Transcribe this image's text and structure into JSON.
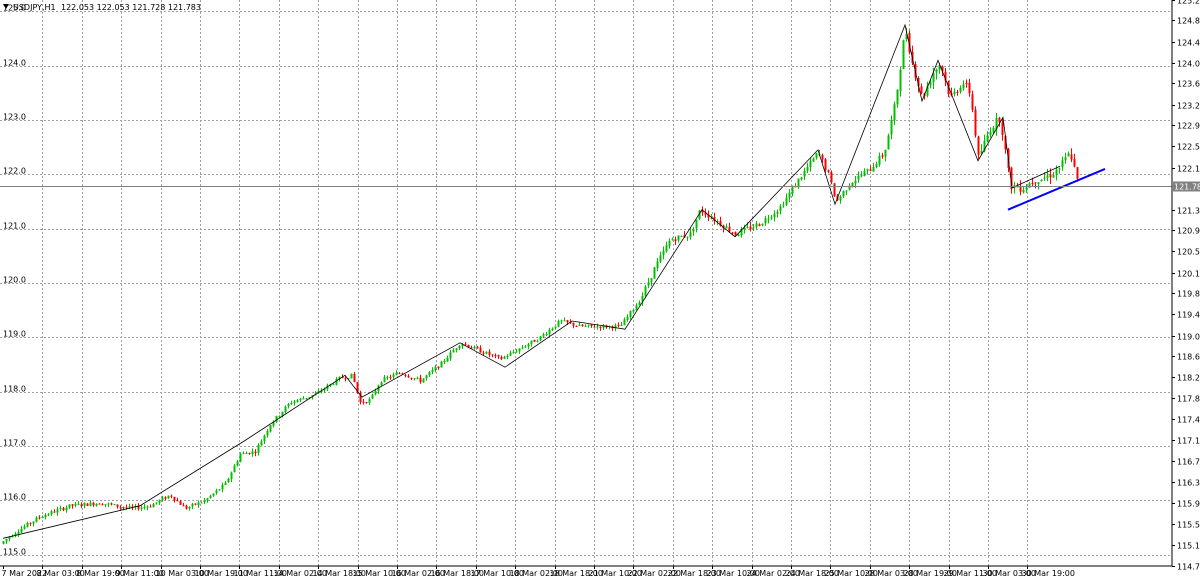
{
  "header": {
    "symbol_timeframe": "USDJPY,H1",
    "ohlc": "122.053 122.053 121.728 121.783"
  },
  "chart_data": {
    "type": "candlestick",
    "symbol": "USDJPY",
    "timeframe": "H1",
    "price_range": [
      114.79,
      125.21
    ],
    "grid": true,
    "y_grid_labels": [
      "125.0",
      "124.0",
      "123.0",
      "122.0",
      "121.0",
      "120.0",
      "119.0",
      "118.0",
      "117.0",
      "116.0",
      "115.0"
    ],
    "y_grid_values": [
      125.0,
      124.0,
      123.0,
      122.0,
      121.0,
      120.0,
      119.0,
      118.0,
      117.0,
      116.0,
      115.0
    ],
    "y_tick_labels": [
      "125.213",
      "124.833",
      "124.443",
      "124.053",
      "123.673",
      "123.283",
      "122.903",
      "122.513",
      "122.123",
      "121.743",
      "121.353",
      "120.973",
      "120.583",
      "120.193",
      "119.813",
      "119.423",
      "119.033",
      "118.653",
      "118.263",
      "117.883",
      "117.493",
      "117.103",
      "116.723",
      "116.333",
      "115.953",
      "115.563",
      "115.173",
      "114.793"
    ],
    "y_tick_values": [
      125.213,
      124.833,
      124.443,
      124.053,
      123.673,
      123.283,
      122.903,
      122.513,
      122.123,
      121.743,
      121.353,
      120.973,
      120.583,
      120.193,
      119.813,
      119.423,
      119.033,
      118.653,
      118.263,
      117.883,
      117.493,
      117.103,
      116.723,
      116.333,
      115.953,
      115.563,
      115.173,
      114.793
    ],
    "x_tick_labels": [
      "7 Mar 2022",
      "8 Mar 03:00",
      "8 Mar 19:00",
      "9 Mar 11:00",
      "10 Mar 03:00",
      "10 Mar 19:00",
      "11 Mar 11:00",
      "14 Mar 02:00",
      "14 Mar 18:00",
      "15 Mar 10:00",
      "16 Mar 02:00",
      "16 Mar 18:00",
      "17 Mar 10:00",
      "18 Mar 02:00",
      "18 Mar 18:00",
      "21 Mar 10:00",
      "22 Mar 02:00",
      "22 Mar 18:00",
      "23 Mar 10:00",
      "24 Mar 02:00",
      "24 Mar 18:00",
      "25 Mar 10:00",
      "28 Mar 03:00",
      "28 Mar 19:00",
      "29 Mar 11:00",
      "30 Mar 03:00",
      "30 Mar 19:00"
    ],
    "current_price": 121.783,
    "current_price_label": "121.783",
    "bull_color": "#00c000",
    "bear_color": "#ff0000",
    "zigzag_color": "#000000",
    "trendline_color": "#0000ff",
    "anchor_prices": [
      [
        0,
        115.2
      ],
      [
        14,
        115.4
      ],
      [
        40,
        115.7
      ],
      [
        70,
        115.9
      ],
      [
        100,
        115.95
      ],
      [
        130,
        115.85
      ],
      [
        150,
        115.9
      ],
      [
        170,
        116.1
      ],
      [
        185,
        115.85
      ],
      [
        205,
        116.0
      ],
      [
        225,
        116.3
      ],
      [
        240,
        116.85
      ],
      [
        255,
        116.9
      ],
      [
        270,
        117.4
      ],
      [
        290,
        117.8
      ],
      [
        315,
        117.95
      ],
      [
        340,
        118.25
      ],
      [
        352,
        118.3
      ],
      [
        360,
        117.8
      ],
      [
        370,
        117.85
      ],
      [
        380,
        118.2
      ],
      [
        400,
        118.35
      ],
      [
        420,
        118.2
      ],
      [
        440,
        118.5
      ],
      [
        460,
        118.9
      ],
      [
        480,
        118.75
      ],
      [
        500,
        118.6
      ],
      [
        520,
        118.8
      ],
      [
        540,
        119.0
      ],
      [
        560,
        119.3
      ],
      [
        580,
        119.2
      ],
      [
        600,
        119.2
      ],
      [
        620,
        119.2
      ],
      [
        640,
        119.7
      ],
      [
        655,
        120.3
      ],
      [
        670,
        120.8
      ],
      [
        690,
        120.9
      ],
      [
        700,
        121.35
      ],
      [
        720,
        121.1
      ],
      [
        735,
        120.9
      ],
      [
        760,
        121.1
      ],
      [
        780,
        121.4
      ],
      [
        800,
        121.95
      ],
      [
        818,
        122.4
      ],
      [
        828,
        122.0
      ],
      [
        836,
        121.5
      ],
      [
        850,
        121.85
      ],
      [
        870,
        122.1
      ],
      [
        884,
        122.4
      ],
      [
        895,
        123.3
      ],
      [
        905,
        124.7
      ],
      [
        912,
        124.05
      ],
      [
        922,
        123.4
      ],
      [
        932,
        123.85
      ],
      [
        940,
        124.05
      ],
      [
        950,
        123.4
      ],
      [
        962,
        123.7
      ],
      [
        970,
        123.5
      ],
      [
        978,
        122.3
      ],
      [
        990,
        122.85
      ],
      [
        1000,
        123.05
      ],
      [
        1010,
        121.8
      ],
      [
        1022,
        121.75
      ],
      [
        1034,
        121.9
      ],
      [
        1046,
        121.95
      ],
      [
        1058,
        122.1
      ],
      [
        1070,
        122.4
      ],
      [
        1078,
        121.8
      ]
    ],
    "zigzag_points": [
      [
        3,
        115.3
      ],
      [
        140,
        115.9
      ],
      [
        245,
        117.1
      ],
      [
        345,
        118.3
      ],
      [
        362,
        117.9
      ],
      [
        460,
        118.9
      ],
      [
        505,
        118.45
      ],
      [
        572,
        119.3
      ],
      [
        625,
        119.15
      ],
      [
        702,
        121.35
      ],
      [
        735,
        120.85
      ],
      [
        818,
        122.45
      ],
      [
        835,
        121.45
      ],
      [
        905,
        124.75
      ],
      [
        922,
        123.35
      ],
      [
        938,
        124.1
      ],
      [
        978,
        122.25
      ],
      [
        1003,
        123.05
      ],
      [
        1012,
        121.75
      ],
      [
        1060,
        122.15
      ]
    ],
    "trendline": [
      [
        1008,
        121.35
      ],
      [
        1105,
        122.1
      ]
    ]
  }
}
